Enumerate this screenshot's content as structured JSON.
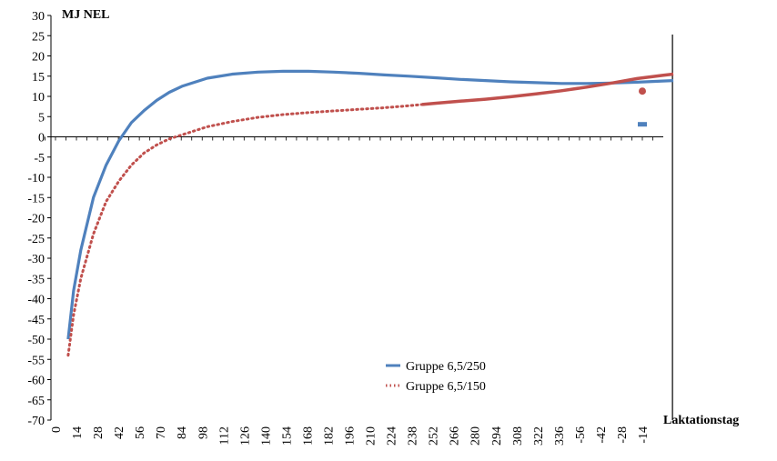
{
  "chart_data": {
    "type": "line",
    "y_axis_title": "MJ NEL",
    "x_axis_title": "Laktationstag",
    "ylim": [
      -70,
      30
    ],
    "y_ticks": [
      30,
      25,
      20,
      15,
      10,
      5,
      0,
      -5,
      -10,
      -15,
      -20,
      -25,
      -30,
      -35,
      -40,
      -45,
      -50,
      -55,
      -60,
      -65,
      -70
    ],
    "x_tick_labels": [
      "0",
      "14",
      "28",
      "42",
      "56",
      "70",
      "84",
      "98",
      "112",
      "126",
      "140",
      "154",
      "168",
      "182",
      "196",
      "210",
      "224",
      "238",
      "252",
      "266",
      "280",
      "294",
      "308",
      "322",
      "336",
      "-56",
      "-42",
      "-28",
      "-14"
    ],
    "lactation_end_day": 342,
    "series": [
      {
        "name": "Gruppe 6,5/250",
        "color": "#4F81BD",
        "style": "solid",
        "x": [
          7,
          10,
          14,
          21,
          28,
          35,
          42,
          49,
          56,
          63,
          70,
          84,
          98,
          112,
          126,
          140,
          154,
          168,
          182,
          196,
          210,
          224,
          238,
          252,
          266,
          280,
          294,
          308,
          322,
          336,
          342
        ],
        "y": [
          -50,
          -38,
          -28,
          -15,
          -7,
          -1,
          3.5,
          6.5,
          9,
          11,
          12.5,
          14.5,
          15.5,
          16,
          16.2,
          16.2,
          16,
          15.7,
          15.3,
          15,
          14.6,
          14.2,
          13.9,
          13.6,
          13.4,
          13.2,
          13.2,
          13.3,
          13.5,
          13.8,
          13.9
        ]
      },
      {
        "name": "Gruppe 6,5/150",
        "color": "#C0504D",
        "style": "dotted-then-solid",
        "solid_from_x": 203,
        "x": [
          7,
          10,
          14,
          21,
          28,
          35,
          42,
          49,
          56,
          63,
          70,
          84,
          98,
          112,
          126,
          140,
          154,
          168,
          182,
          196,
          203,
          210,
          224,
          238,
          252,
          266,
          280,
          294,
          308,
          322,
          336,
          342
        ],
        "y": [
          -54,
          -44,
          -35,
          -24,
          -16,
          -11,
          -7,
          -4,
          -2,
          -0.5,
          0.5,
          2.5,
          3.8,
          4.8,
          5.5,
          6,
          6.4,
          6.8,
          7.2,
          7.7,
          8,
          8.3,
          8.8,
          9.3,
          9.9,
          10.6,
          11.4,
          12.3,
          13.3,
          14.4,
          15.2,
          15.5
        ]
      }
    ],
    "dry_period_points": [
      {
        "series": "Gruppe 6,5/150",
        "x_label": "-14",
        "y": 11.3,
        "color": "#C0504D"
      },
      {
        "series": "Gruppe 6,5/250",
        "x_label": "-14",
        "y": 3.1,
        "color": "#4F81BD"
      }
    ],
    "legend": {
      "position": "lower-center",
      "entries": [
        "Gruppe 6,5/250",
        "Gruppe 6,5/150"
      ]
    }
  }
}
